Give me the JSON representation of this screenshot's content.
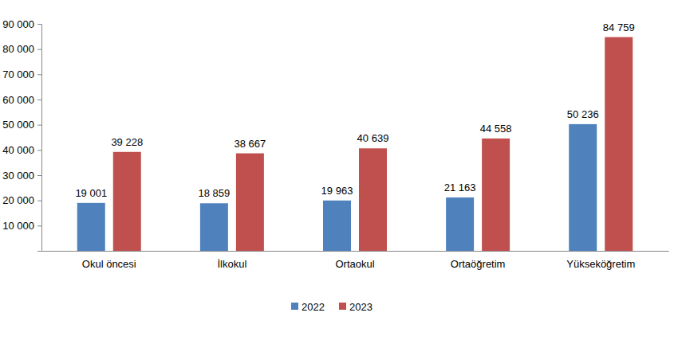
{
  "chart_data": {
    "type": "bar",
    "categories": [
      "Okul öncesi",
      "İlkokul",
      "Ortaokul",
      "Ortaöğretim",
      "Yükseköğretim"
    ],
    "series": [
      {
        "name": "2022",
        "color": "#4f81bd",
        "values": [
          19001,
          18859,
          19963,
          21163,
          50236
        ],
        "value_labels": [
          "19 001",
          "18 859",
          "19 963",
          "21 163",
          "50 236"
        ]
      },
      {
        "name": "2023",
        "color": "#c0504d",
        "values": [
          39228,
          38667,
          40639,
          44558,
          84759
        ],
        "value_labels": [
          "39 228",
          "38 667",
          "40 639",
          "44 558",
          "84 759"
        ]
      }
    ],
    "ylim": [
      0,
      90000
    ],
    "yticks": [
      {
        "value": 10000,
        "label": "10 000"
      },
      {
        "value": 20000,
        "label": "20 000"
      },
      {
        "value": 30000,
        "label": "30 000"
      },
      {
        "value": 40000,
        "label": "40 000"
      },
      {
        "value": 50000,
        "label": "50 000"
      },
      {
        "value": 60000,
        "label": "60 000"
      },
      {
        "value": 70000,
        "label": "70 000"
      },
      {
        "value": 80000,
        "label": "80 000"
      },
      {
        "value": 90000,
        "label": "90 000"
      }
    ],
    "grid": false,
    "data_labels": true,
    "legend": "bottom"
  }
}
